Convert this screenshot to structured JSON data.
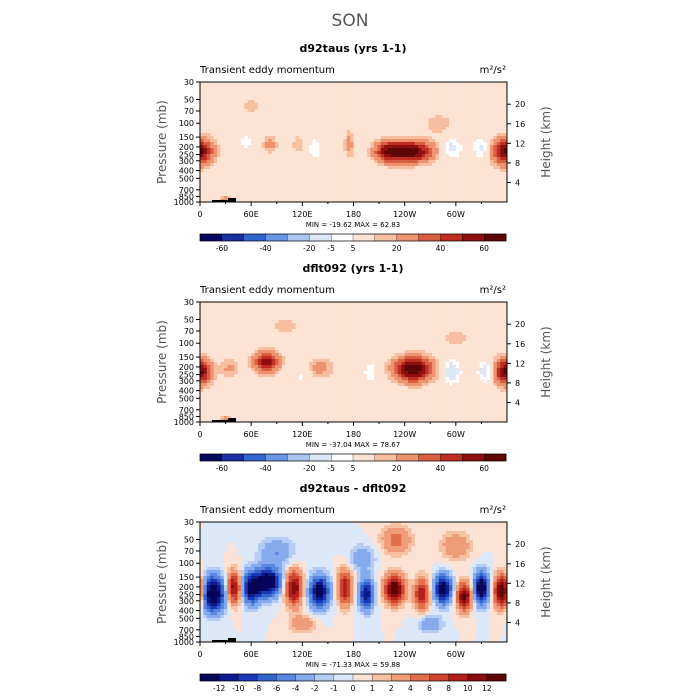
{
  "figure_title": "SON",
  "chart_data": [
    {
      "type": "heatmap",
      "title": "d92taus (yrs 1-1)",
      "left_label": "Transient eddy momentum",
      "units": "m²/s²",
      "ylabel": "Pressure (mb)",
      "y2label": "Height (km)",
      "x_ticks": [
        "0",
        "60E",
        "120E",
        "180",
        "120W",
        "60W"
      ],
      "y_ticks": [
        "30",
        "50",
        "70",
        "100",
        "150",
        "200",
        "250",
        "300",
        "400",
        "500",
        "700",
        "850",
        "1000"
      ],
      "y2_ticks": [
        "4",
        "8",
        "12",
        "16",
        "20"
      ],
      "minmax": "MIN = -19.62   MAX =  62.83",
      "colorbar_labels": [
        "-60",
        "-40",
        "-20",
        "-5",
        "5",
        "20",
        "40",
        "60"
      ],
      "scale": 60,
      "blobs": [
        {
          "lon": 0,
          "lev": 0.58,
          "amp": 28,
          "slon": 12,
          "slev": 0.07
        },
        {
          "lon": 358,
          "lev": 0.58,
          "amp": 26,
          "slon": 10,
          "slev": 0.08
        },
        {
          "lon": 248,
          "lev": 0.58,
          "amp": 58,
          "slon": 17,
          "slev": 0.06
        },
        {
          "lon": 220,
          "lev": 0.58,
          "amp": 40,
          "slon": 11,
          "slev": 0.06
        },
        {
          "lon": 295,
          "lev": 0.55,
          "amp": -14,
          "slon": 8,
          "slev": 0.06
        },
        {
          "lon": 330,
          "lev": 0.55,
          "amp": -12,
          "slon": 7,
          "slev": 0.06
        },
        {
          "lon": 82,
          "lev": 0.52,
          "amp": 14,
          "slon": 6,
          "slev": 0.05
        },
        {
          "lon": 115,
          "lev": 0.52,
          "amp": 10,
          "slon": 5,
          "slev": 0.05
        },
        {
          "lon": 175,
          "lev": 0.52,
          "amp": 14,
          "slon": 4,
          "slev": 0.08
        },
        {
          "lon": 135,
          "lev": 0.55,
          "amp": -8,
          "slon": 6,
          "slev": 0.07
        },
        {
          "lon": 55,
          "lev": 0.5,
          "amp": -7,
          "slon": 7,
          "slev": 0.05
        },
        {
          "lon": 60,
          "lev": 0.2,
          "amp": 6,
          "slon": 15,
          "slev": 0.08
        },
        {
          "lon": 190,
          "lev": 0.15,
          "amp": 5,
          "slon": 14,
          "slev": 0.07
        },
        {
          "lon": 280,
          "lev": 0.35,
          "amp": 7,
          "slon": 16,
          "slev": 0.08
        },
        {
          "lon": 100,
          "lev": 0.78,
          "amp": -5,
          "slon": 25,
          "slev": 0.1
        },
        {
          "lon": 30,
          "lev": 0.98,
          "amp": 18,
          "slon": 4,
          "slev": 0.02
        }
      ]
    },
    {
      "type": "heatmap",
      "title": "dflt092 (yrs 1-1)",
      "left_label": "Transient eddy momentum",
      "units": "m²/s²",
      "ylabel": "Pressure (mb)",
      "y2label": "Height (km)",
      "x_ticks": [
        "0",
        "60E",
        "120E",
        "180",
        "120W",
        "60W"
      ],
      "y_ticks": [
        "30",
        "50",
        "70",
        "100",
        "150",
        "200",
        "250",
        "300",
        "400",
        "500",
        "700",
        "850",
        "1000"
      ],
      "y2_ticks": [
        "4",
        "8",
        "12",
        "16",
        "20"
      ],
      "minmax": "MIN = -37.04   MAX =  78.67",
      "colorbar_labels": [
        "-60",
        "-40",
        "-20",
        "-5",
        "5",
        "20",
        "40",
        "60"
      ],
      "scale": 60,
      "blobs": [
        {
          "lon": 0,
          "lev": 0.58,
          "amp": 30,
          "slon": 10,
          "slev": 0.07
        },
        {
          "lon": 358,
          "lev": 0.58,
          "amp": 24,
          "slon": 9,
          "slev": 0.08
        },
        {
          "lon": 78,
          "lev": 0.5,
          "amp": 45,
          "slon": 10,
          "slev": 0.06
        },
        {
          "lon": 250,
          "lev": 0.56,
          "amp": 62,
          "slon": 15,
          "slev": 0.07
        },
        {
          "lon": 140,
          "lev": 0.55,
          "amp": 14,
          "slon": 12,
          "slev": 0.06
        },
        {
          "lon": 35,
          "lev": 0.55,
          "amp": 12,
          "slon": 8,
          "slev": 0.06
        },
        {
          "lon": 295,
          "lev": 0.58,
          "amp": -18,
          "slon": 7,
          "slev": 0.07
        },
        {
          "lon": 335,
          "lev": 0.58,
          "amp": -16,
          "slon": 6,
          "slev": 0.06
        },
        {
          "lon": 200,
          "lev": 0.58,
          "amp": -10,
          "slon": 5,
          "slev": 0.06
        },
        {
          "lon": 120,
          "lev": 0.6,
          "amp": -7,
          "slon": 8,
          "slev": 0.07
        },
        {
          "lon": 100,
          "lev": 0.2,
          "amp": 6,
          "slon": 20,
          "slev": 0.08
        },
        {
          "lon": 300,
          "lev": 0.3,
          "amp": 6,
          "slon": 18,
          "slev": 0.08
        },
        {
          "lon": 180,
          "lev": 0.8,
          "amp": -5,
          "slon": 22,
          "slev": 0.1
        },
        {
          "lon": 30,
          "lev": 0.98,
          "amp": 18,
          "slon": 4,
          "slev": 0.02
        }
      ]
    },
    {
      "type": "heatmap",
      "title": "d92taus - dflt092",
      "left_label": "Transient eddy momentum",
      "units": "m²/s²",
      "ylabel": "Pressure (mb)",
      "y2label": "Height (km)",
      "x_ticks": [
        "0",
        "60E",
        "120E",
        "180",
        "120W",
        "60W"
      ],
      "y_ticks": [
        "30",
        "50",
        "70",
        "100",
        "150",
        "200",
        "250",
        "300",
        "400",
        "500",
        "700",
        "850",
        "1000"
      ],
      "y2_ticks": [
        "4",
        "8",
        "12",
        "16",
        "20"
      ],
      "minmax": "MIN = -71.33   MAX =  59.88",
      "colorbar_labels": [
        "-12",
        "-10",
        "-8",
        "-6",
        "-4",
        "-2",
        "-1",
        "0",
        "1",
        "2",
        "4",
        "6",
        "8",
        "10",
        "12"
      ],
      "scale": 12,
      "blobs": [
        {
          "lon": 15,
          "lev": 0.6,
          "amp": -16,
          "slon": 10,
          "slev": 0.1
        },
        {
          "lon": 60,
          "lev": 0.55,
          "amp": -13,
          "slon": 8,
          "slev": 0.09
        },
        {
          "lon": 80,
          "lev": 0.5,
          "amp": -16,
          "slon": 10,
          "slev": 0.08
        },
        {
          "lon": 40,
          "lev": 0.55,
          "amp": 12,
          "slon": 6,
          "slev": 0.09
        },
        {
          "lon": 110,
          "lev": 0.55,
          "amp": 12,
          "slon": 7,
          "slev": 0.1
        },
        {
          "lon": 140,
          "lev": 0.58,
          "amp": -14,
          "slon": 8,
          "slev": 0.09
        },
        {
          "lon": 170,
          "lev": 0.55,
          "amp": 10,
          "slon": 6,
          "slev": 0.1
        },
        {
          "lon": 195,
          "lev": 0.6,
          "amp": -12,
          "slon": 6,
          "slev": 0.09
        },
        {
          "lon": 228,
          "lev": 0.56,
          "amp": 15,
          "slon": 8,
          "slev": 0.08
        },
        {
          "lon": 260,
          "lev": 0.6,
          "amp": 10,
          "slon": 6,
          "slev": 0.09
        },
        {
          "lon": 285,
          "lev": 0.56,
          "amp": -15,
          "slon": 7,
          "slev": 0.08
        },
        {
          "lon": 310,
          "lev": 0.62,
          "amp": 13,
          "slon": 6,
          "slev": 0.08
        },
        {
          "lon": 330,
          "lev": 0.55,
          "amp": -16,
          "slon": 6,
          "slev": 0.09
        },
        {
          "lon": 355,
          "lev": 0.58,
          "amp": 16,
          "slon": 7,
          "slev": 0.09
        },
        {
          "lon": 230,
          "lev": 0.15,
          "amp": 5,
          "slon": 12,
          "slev": 0.08
        },
        {
          "lon": 90,
          "lev": 0.25,
          "amp": -4,
          "slon": 14,
          "slev": 0.08
        },
        {
          "lon": 190,
          "lev": 0.3,
          "amp": -4,
          "slon": 10,
          "slev": 0.07
        },
        {
          "lon": 300,
          "lev": 0.2,
          "amp": 4,
          "slon": 12,
          "slev": 0.08
        },
        {
          "lon": 120,
          "lev": 0.85,
          "amp": 4,
          "slon": 10,
          "slev": 0.05
        },
        {
          "lon": 270,
          "lev": 0.85,
          "amp": -4,
          "slon": 10,
          "slev": 0.05
        }
      ]
    }
  ]
}
